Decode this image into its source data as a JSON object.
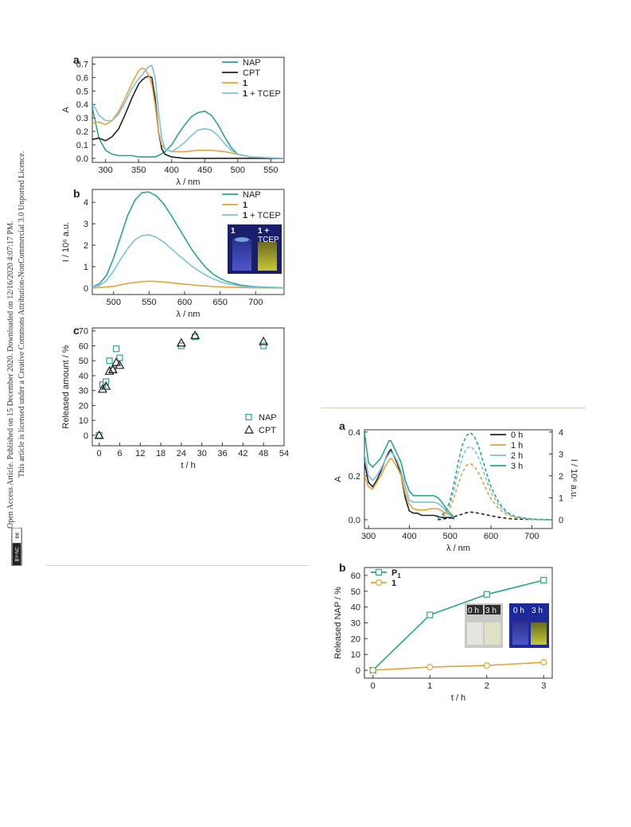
{
  "sidebar": {
    "line1": "Open Access Article. Published on 15 December 2020. Downloaded on 12/16/2020 4:07:17 PM.",
    "line2": "This article is licensed under a Creative Commons Attribution-NonCommercial 3.0 Unported Licence.",
    "badge_cc": "cc",
    "badge_by": "BY-NC"
  },
  "colors": {
    "teal": "#2aa58c",
    "black": "#222222",
    "orange": "#e0a43a",
    "lightblue": "#7cbfe6"
  },
  "chart_data": [
    {
      "id": "a-left",
      "panel": "a",
      "type": "line",
      "xlabel": "λ / nm",
      "ylabel": "A",
      "xlim": [
        280,
        570
      ],
      "ylim": [
        -0.03,
        0.75
      ],
      "xticks": [
        300,
        350,
        400,
        450,
        500,
        550
      ],
      "yticks": [
        0.0,
        0.1,
        0.2,
        0.3,
        0.4,
        0.5,
        0.6,
        0.7
      ],
      "legend": "top-right",
      "series": [
        {
          "name": "NAP",
          "color": "#2aa58c",
          "x": [
            280,
            285,
            290,
            300,
            310,
            320,
            330,
            340,
            350,
            355,
            360,
            365,
            370,
            375,
            380,
            390,
            400,
            410,
            420,
            430,
            440,
            450,
            460,
            470,
            480,
            490,
            500,
            520,
            540,
            570
          ],
          "y": [
            0.38,
            0.26,
            0.15,
            0.06,
            0.03,
            0.02,
            0.02,
            0.02,
            0.01,
            0.01,
            0.01,
            0.01,
            0.01,
            0.01,
            0.02,
            0.05,
            0.1,
            0.18,
            0.25,
            0.31,
            0.34,
            0.35,
            0.32,
            0.25,
            0.16,
            0.08,
            0.03,
            0.01,
            0.0,
            0.0
          ]
        },
        {
          "name": "CPT",
          "color": "#222222",
          "x": [
            280,
            290,
            300,
            310,
            320,
            330,
            340,
            350,
            355,
            360,
            365,
            370,
            375,
            380,
            385,
            390,
            400,
            420,
            450,
            500,
            570
          ],
          "y": [
            0.14,
            0.15,
            0.13,
            0.16,
            0.22,
            0.33,
            0.45,
            0.55,
            0.58,
            0.6,
            0.61,
            0.6,
            0.45,
            0.2,
            0.07,
            0.03,
            0.01,
            0.0,
            0.0,
            0.0,
            0.0
          ]
        },
        {
          "name": "1",
          "bold": true,
          "color": "#e0a43a",
          "x": [
            280,
            290,
            300,
            310,
            320,
            330,
            340,
            350,
            355,
            360,
            365,
            370,
            375,
            380,
            385,
            390,
            400,
            420,
            440,
            460,
            480,
            500,
            520,
            570
          ],
          "y": [
            0.26,
            0.27,
            0.25,
            0.28,
            0.35,
            0.45,
            0.56,
            0.65,
            0.67,
            0.66,
            0.62,
            0.55,
            0.4,
            0.2,
            0.1,
            0.07,
            0.05,
            0.05,
            0.06,
            0.06,
            0.05,
            0.03,
            0.01,
            0.0
          ]
        },
        {
          "name": "1 + TCEP",
          "bold_prefix": "1",
          "rest": " + TCEP",
          "color": "#7cbfe6",
          "x": [
            280,
            285,
            290,
            300,
            310,
            320,
            330,
            340,
            350,
            355,
            360,
            365,
            370,
            375,
            380,
            385,
            390,
            400,
            410,
            420,
            430,
            440,
            450,
            460,
            470,
            480,
            490,
            500,
            520,
            570
          ],
          "y": [
            0.4,
            0.37,
            0.32,
            0.28,
            0.28,
            0.33,
            0.42,
            0.52,
            0.59,
            0.62,
            0.65,
            0.68,
            0.69,
            0.6,
            0.35,
            0.15,
            0.07,
            0.05,
            0.08,
            0.12,
            0.17,
            0.21,
            0.22,
            0.21,
            0.17,
            0.11,
            0.06,
            0.03,
            0.01,
            0.0
          ]
        }
      ]
    },
    {
      "id": "b-left",
      "panel": "b",
      "type": "line",
      "xlabel": "λ / nm",
      "ylabel": "I / 10⁶ a.u.",
      "xlim": [
        470,
        740
      ],
      "ylim": [
        -0.3,
        4.6
      ],
      "xticks": [
        500,
        550,
        600,
        650,
        700
      ],
      "yticks": [
        0,
        1,
        2,
        3,
        4
      ],
      "legend": "top-right",
      "inset_labels": [
        "1",
        "1 +",
        "TCEP"
      ],
      "series": [
        {
          "name": "NAP",
          "color": "#2aa58c",
          "x": [
            470,
            480,
            490,
            500,
            510,
            520,
            530,
            540,
            550,
            560,
            570,
            580,
            590,
            600,
            610,
            620,
            630,
            640,
            650,
            660,
            680,
            700,
            720,
            740
          ],
          "y": [
            0.05,
            0.2,
            0.6,
            1.4,
            2.4,
            3.4,
            4.1,
            4.45,
            4.48,
            4.3,
            3.95,
            3.45,
            2.9,
            2.35,
            1.8,
            1.35,
            0.95,
            0.65,
            0.45,
            0.3,
            0.13,
            0.06,
            0.03,
            0.01
          ]
        },
        {
          "name": "1",
          "bold": true,
          "color": "#e0a43a",
          "x": [
            470,
            500,
            520,
            540,
            550,
            560,
            580,
            600,
            620,
            640,
            660,
            700,
            740
          ],
          "y": [
            0.0,
            0.08,
            0.22,
            0.3,
            0.32,
            0.31,
            0.25,
            0.18,
            0.12,
            0.07,
            0.04,
            0.01,
            0.0
          ]
        },
        {
          "name": "1 + TCEP",
          "bold_prefix": "1",
          "rest": " + TCEP",
          "color": "#7cbfe6",
          "x": [
            470,
            480,
            490,
            500,
            510,
            520,
            530,
            540,
            550,
            560,
            570,
            580,
            590,
            600,
            610,
            620,
            630,
            640,
            650,
            660,
            680,
            700,
            720,
            740
          ],
          "y": [
            0.05,
            0.12,
            0.35,
            0.8,
            1.35,
            1.85,
            2.25,
            2.45,
            2.48,
            2.38,
            2.15,
            1.88,
            1.58,
            1.3,
            1.03,
            0.8,
            0.6,
            0.43,
            0.3,
            0.2,
            0.09,
            0.04,
            0.02,
            0.01
          ]
        }
      ]
    },
    {
      "id": "c-left",
      "panel": "c",
      "type": "scatter",
      "xlabel": "t / h",
      "ylabel": "Released amount / %",
      "xlim": [
        -2,
        54
      ],
      "ylim": [
        -7,
        72
      ],
      "xticks": [
        0,
        6,
        12,
        18,
        24,
        30,
        36,
        42,
        48,
        54
      ],
      "yticks": [
        0,
        10,
        20,
        30,
        40,
        50,
        60,
        70
      ],
      "legend": "bottom-right",
      "series": [
        {
          "name": "NAP",
          "marker": "square",
          "color": "#2aa58c",
          "x": [
            0,
            1,
            2,
            3,
            4,
            5,
            6,
            24,
            28,
            48
          ],
          "y": [
            0,
            34,
            36,
            50,
            44,
            58,
            52,
            60,
            66,
            60
          ]
        },
        {
          "name": "CPT",
          "marker": "triangle",
          "color": "#222222",
          "x": [
            0,
            1,
            2,
            3,
            4,
            5,
            6,
            24,
            28,
            48
          ],
          "y": [
            0,
            31,
            33,
            43,
            44,
            49,
            47,
            62,
            67,
            63
          ]
        }
      ]
    },
    {
      "id": "a-right",
      "panel": "a",
      "type": "line",
      "xlabel": "λ / nm",
      "ylabel": "A",
      "y2label": "I / 10⁶ a.u.",
      "xlim": [
        290,
        750
      ],
      "ylim": [
        -0.04,
        0.41
      ],
      "y2lim": [
        -0.4,
        4.1
      ],
      "xticks": [
        300,
        400,
        500,
        600,
        700
      ],
      "yticks": [
        0.0,
        0.2,
        0.4
      ],
      "y2ticks": [
        0,
        1,
        2,
        3,
        4
      ],
      "legend": "top-right",
      "series": [
        {
          "name": "0 h",
          "color": "#222222",
          "x": [
            290,
            300,
            310,
            320,
            330,
            340,
            350,
            355,
            360,
            370,
            380,
            390,
            400,
            410,
            420,
            430,
            440,
            450,
            460,
            470,
            480,
            490,
            500,
            510
          ],
          "y": [
            0.26,
            0.17,
            0.15,
            0.18,
            0.22,
            0.27,
            0.31,
            0.32,
            0.3,
            0.26,
            0.2,
            0.1,
            0.04,
            0.03,
            0.03,
            0.02,
            0.02,
            0.02,
            0.02,
            0.015,
            0.01,
            0.01,
            0.01,
            0.005
          ]
        },
        {
          "name": "1 h",
          "color": "#e0a43a",
          "x": [
            290,
            300,
            310,
            320,
            330,
            340,
            350,
            355,
            360,
            370,
            380,
            390,
            400,
            410,
            420,
            430,
            440,
            450,
            460,
            470,
            480,
            490,
            500,
            510
          ],
          "y": [
            0.2,
            0.15,
            0.14,
            0.17,
            0.2,
            0.24,
            0.27,
            0.28,
            0.27,
            0.24,
            0.2,
            0.12,
            0.07,
            0.05,
            0.045,
            0.045,
            0.045,
            0.05,
            0.05,
            0.05,
            0.04,
            0.03,
            0.02,
            0.01
          ]
        },
        {
          "name": "2 h",
          "color": "#7cbfe6",
          "x": [
            290,
            300,
            310,
            320,
            330,
            340,
            350,
            355,
            360,
            370,
            380,
            390,
            400,
            410,
            420,
            430,
            440,
            450,
            460,
            470,
            480,
            490,
            500,
            510
          ],
          "y": [
            0.3,
            0.2,
            0.18,
            0.2,
            0.23,
            0.27,
            0.3,
            0.31,
            0.3,
            0.27,
            0.22,
            0.15,
            0.09,
            0.08,
            0.08,
            0.08,
            0.08,
            0.08,
            0.08,
            0.075,
            0.06,
            0.04,
            0.02,
            0.01
          ]
        },
        {
          "name": "3 h",
          "color": "#2aa58c",
          "x": [
            290,
            300,
            310,
            320,
            330,
            340,
            350,
            355,
            360,
            370,
            380,
            390,
            400,
            410,
            420,
            430,
            440,
            450,
            460,
            470,
            480,
            490,
            500,
            510
          ],
          "y": [
            0.4,
            0.26,
            0.24,
            0.26,
            0.28,
            0.32,
            0.36,
            0.36,
            0.34,
            0.3,
            0.26,
            0.18,
            0.13,
            0.11,
            0.11,
            0.11,
            0.11,
            0.11,
            0.11,
            0.1,
            0.08,
            0.05,
            0.03,
            0.01
          ]
        },
        {
          "name": "0 h fluorescence",
          "axis": "right",
          "dashed": true,
          "color": "#222222",
          "x": [
            470,
            500,
            520,
            540,
            550,
            560,
            580,
            600,
            620,
            640,
            660,
            700,
            750
          ],
          "y": [
            0.0,
            0.08,
            0.2,
            0.32,
            0.35,
            0.33,
            0.26,
            0.18,
            0.11,
            0.06,
            0.03,
            0.01,
            0.0
          ]
        },
        {
          "name": "1 h fluorescence",
          "axis": "right",
          "dashed": true,
          "color": "#e0a43a",
          "x": [
            470,
            490,
            500,
            510,
            520,
            530,
            540,
            550,
            560,
            570,
            580,
            590,
            600,
            620,
            640,
            660,
            700,
            750
          ],
          "y": [
            0.05,
            0.25,
            0.55,
            1.05,
            1.65,
            2.15,
            2.48,
            2.55,
            2.42,
            2.12,
            1.72,
            1.32,
            0.95,
            0.48,
            0.22,
            0.1,
            0.02,
            0.0
          ]
        },
        {
          "name": "2 h fluorescence",
          "axis": "right",
          "dashed": true,
          "color": "#7cbfe6",
          "x": [
            470,
            490,
            500,
            510,
            520,
            530,
            540,
            550,
            560,
            570,
            580,
            590,
            600,
            620,
            640,
            660,
            700,
            750
          ],
          "y": [
            0.05,
            0.35,
            0.75,
            1.4,
            2.2,
            2.85,
            3.25,
            3.35,
            3.18,
            2.8,
            2.28,
            1.75,
            1.25,
            0.62,
            0.28,
            0.12,
            0.02,
            0.0
          ]
        },
        {
          "name": "3 h fluorescence",
          "axis": "right",
          "dashed": true,
          "color": "#2aa58c",
          "x": [
            470,
            490,
            500,
            510,
            520,
            530,
            540,
            550,
            560,
            570,
            580,
            590,
            600,
            620,
            640,
            660,
            700,
            750
          ],
          "y": [
            0.05,
            0.4,
            0.9,
            1.7,
            2.65,
            3.4,
            3.85,
            3.97,
            3.78,
            3.32,
            2.7,
            2.08,
            1.5,
            0.75,
            0.33,
            0.14,
            0.03,
            0.0
          ]
        }
      ]
    },
    {
      "id": "b-right",
      "panel": "b",
      "type": "line",
      "xlabel": "t / h",
      "ylabel": "Released NAP / %",
      "xlim": [
        -0.15,
        3.15
      ],
      "ylim": [
        -5,
        65
      ],
      "xticks": [
        0,
        1,
        2,
        3
      ],
      "yticks": [
        0,
        10,
        20,
        30,
        40,
        50,
        60
      ],
      "legend": "top-left",
      "inset_labels": [
        "0 h",
        "3 h",
        "0 h",
        "3 h"
      ],
      "series": [
        {
          "name": "P",
          "subscript": "1",
          "bold": true,
          "marker": "square",
          "color": "#2aa58c",
          "x": [
            0,
            1,
            2,
            3
          ],
          "y": [
            0,
            35,
            48,
            57
          ]
        },
        {
          "name": "1",
          "bold": true,
          "marker": "circle",
          "color": "#e0a43a",
          "x": [
            0,
            1,
            2,
            3
          ],
          "y": [
            0,
            2,
            3,
            5
          ]
        }
      ]
    }
  ]
}
